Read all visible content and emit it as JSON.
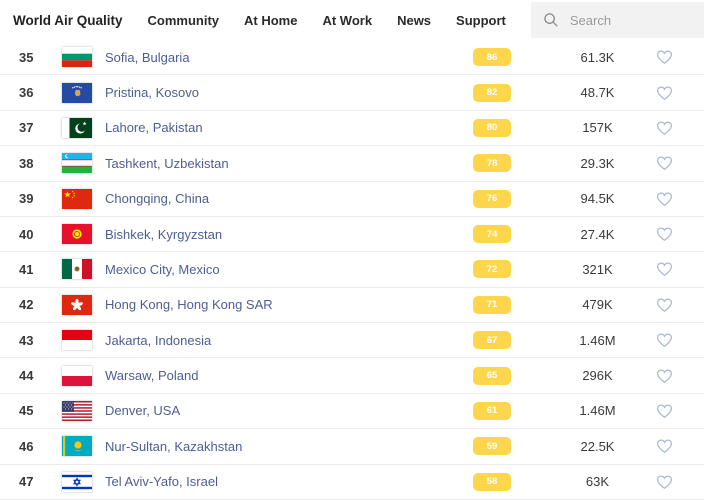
{
  "nav": {
    "brand": "World Air Quality",
    "items": [
      "Community",
      "At Home",
      "At Work",
      "News",
      "Support"
    ]
  },
  "search": {
    "placeholder": "Search",
    "icon": "search-icon"
  },
  "colors": {
    "aqi_badge": "#fdd64b",
    "badge_text": "#ffffff",
    "city_link": "#4d5e92",
    "heart_outline": "#a9bad3",
    "rank_text": "#3a3a3a",
    "row_border": "#ebebeb",
    "search_bg": "#f2f2f2"
  },
  "table": {
    "rows": [
      {
        "rank": "35",
        "city": "Sofia, Bulgaria",
        "flag": "bg",
        "flag_icon": "bulgaria-flag-icon",
        "aqi": "86",
        "followers": "61.3K"
      },
      {
        "rank": "36",
        "city": "Pristina, Kosovo",
        "flag": "xk",
        "flag_icon": "kosovo-flag-icon",
        "aqi": "82",
        "followers": "48.7K"
      },
      {
        "rank": "37",
        "city": "Lahore, Pakistan",
        "flag": "pk",
        "flag_icon": "pakistan-flag-icon",
        "aqi": "80",
        "followers": "157K"
      },
      {
        "rank": "38",
        "city": "Tashkent, Uzbekistan",
        "flag": "uz",
        "flag_icon": "uzbekistan-flag-icon",
        "aqi": "78",
        "followers": "29.3K"
      },
      {
        "rank": "39",
        "city": "Chongqing, China",
        "flag": "cn",
        "flag_icon": "china-flag-icon",
        "aqi": "76",
        "followers": "94.5K"
      },
      {
        "rank": "40",
        "city": "Bishkek, Kyrgyzstan",
        "flag": "kg",
        "flag_icon": "kyrgyzstan-flag-icon",
        "aqi": "74",
        "followers": "27.4K"
      },
      {
        "rank": "41",
        "city": "Mexico City, Mexico",
        "flag": "mx",
        "flag_icon": "mexico-flag-icon",
        "aqi": "72",
        "followers": "321K"
      },
      {
        "rank": "42",
        "city": "Hong Kong, Hong Kong SAR",
        "flag": "hk",
        "flag_icon": "hong-kong-flag-icon",
        "aqi": "71",
        "followers": "479K"
      },
      {
        "rank": "43",
        "city": "Jakarta, Indonesia",
        "flag": "id",
        "flag_icon": "indonesia-flag-icon",
        "aqi": "67",
        "followers": "1.46M"
      },
      {
        "rank": "44",
        "city": "Warsaw, Poland",
        "flag": "pl",
        "flag_icon": "poland-flag-icon",
        "aqi": "65",
        "followers": "296K"
      },
      {
        "rank": "45",
        "city": "Denver, USA",
        "flag": "us",
        "flag_icon": "usa-flag-icon",
        "aqi": "61",
        "followers": "1.46M"
      },
      {
        "rank": "46",
        "city": "Nur-Sultan, Kazakhstan",
        "flag": "kz",
        "flag_icon": "kazakhstan-flag-icon",
        "aqi": "59",
        "followers": "22.5K"
      },
      {
        "rank": "47",
        "city": "Tel Aviv-Yafo, Israel",
        "flag": "il",
        "flag_icon": "israel-flag-icon",
        "aqi": "58",
        "followers": "63K"
      }
    ]
  }
}
